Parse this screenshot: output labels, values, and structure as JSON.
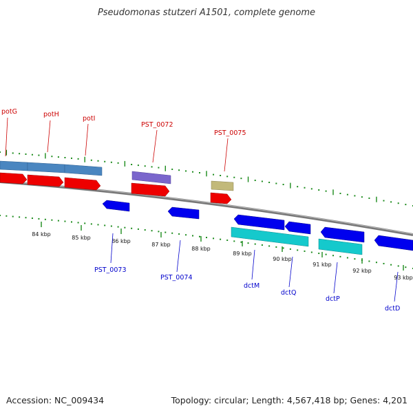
{
  "title": "Pseudomonas stutzeri A1501, complete genome",
  "footer": {
    "accession": "Accession: NC_009434",
    "summary": "Topology: circular; Length: 4,567,418 bp; Genes: 4,201"
  },
  "colors": {
    "backbone": "#888888",
    "tick": "#1a8a1a",
    "forward_cds": "#ee0000",
    "reverse_cds": "#0000ee",
    "forward_gene_blue": "#4a86c0",
    "purple_gene": "#7a66cc",
    "khaki_gene": "#c2b97a",
    "cyan_gene": "#15c9cc",
    "label_top": "#cc0000",
    "label_bottom": "#0000cc"
  },
  "scale": {
    "ticks": [
      "84 kbp",
      "85 kbp",
      "86 kbp",
      "87 kbp",
      "88 kbp",
      "89 kbp",
      "90 kbp",
      "91 kbp",
      "92 kbp",
      "93 kbp"
    ]
  },
  "labels_top": [
    "potG",
    "potH",
    "potI",
    "PST_0072",
    "PST_0075"
  ],
  "labels_bottom": [
    "PST_0073",
    "PST_0074",
    "dctM",
    "dctQ",
    "dctP",
    "dctD"
  ]
}
